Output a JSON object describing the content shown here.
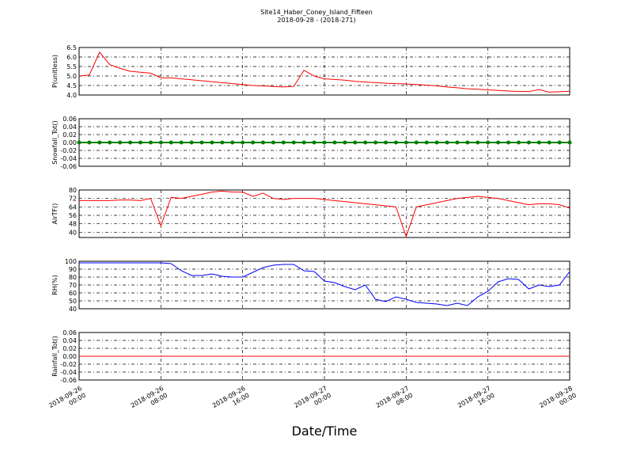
{
  "chart_data": [
    {
      "type": "line",
      "title": "Site14_Haber_Coney_Island_Fifteen",
      "subtitle": "2018-09-28 - (2018-271)",
      "ylabel": "P(unitless)",
      "color": "#ff0000",
      "grid": true,
      "xlim": [
        "2018-09-26 00:00",
        "2018-09-28 00:00"
      ],
      "xticks": [
        "2018-09-26 00:00",
        "2018-09-26 08:00",
        "2018-09-26 16:00",
        "2018-09-27 00:00",
        "2018-09-27 08:00",
        "2018-09-27 16:00",
        "2018-09-28 00:00"
      ],
      "ylim": [
        4.0,
        6.5
      ],
      "yticks": [
        {
          "value": 4.0,
          "label": "4.0"
        },
        4.5,
        {
          "value": 5.0,
          "label": "5.0"
        },
        5.5,
        {
          "value": 6.0,
          "label": "6.0"
        },
        6.5
      ],
      "x": [
        "2018-09-26 00:00",
        "2018-09-26 01:00",
        "2018-09-26 02:00",
        "2018-09-26 03:00",
        "2018-09-26 04:00",
        "2018-09-26 05:00",
        "2018-09-26 06:00",
        "2018-09-26 07:00",
        "2018-09-26 08:00",
        "2018-09-26 09:00",
        "2018-09-26 10:00",
        "2018-09-26 11:00",
        "2018-09-26 12:00",
        "2018-09-26 13:00",
        "2018-09-26 14:00",
        "2018-09-26 15:00",
        "2018-09-26 16:00",
        "2018-09-26 17:00",
        "2018-09-26 18:00",
        "2018-09-26 19:00",
        "2018-09-26 20:00",
        "2018-09-26 21:00",
        "2018-09-26 22:00",
        "2018-09-26 23:00",
        "2018-09-27 00:00",
        "2018-09-27 01:00",
        "2018-09-27 02:00",
        "2018-09-27 03:00",
        "2018-09-27 04:00",
        "2018-09-27 05:00",
        "2018-09-27 06:00",
        "2018-09-27 07:00",
        "2018-09-27 08:00",
        "2018-09-27 09:00",
        "2018-09-27 10:00",
        "2018-09-27 11:00",
        "2018-09-27 12:00",
        "2018-09-27 13:00",
        "2018-09-27 14:00",
        "2018-09-27 15:00",
        "2018-09-27 16:00",
        "2018-09-27 17:00",
        "2018-09-27 18:00",
        "2018-09-27 19:00",
        "2018-09-27 20:00",
        "2018-09-27 21:00",
        "2018-09-27 22:00",
        "2018-09-27 23:00",
        "2018-09-28 00:00"
      ],
      "values": [
        5.0,
        5.05,
        6.25,
        5.6,
        5.4,
        5.25,
        5.2,
        5.15,
        4.9,
        4.9,
        4.85,
        4.8,
        4.75,
        4.7,
        4.65,
        4.6,
        4.55,
        4.5,
        4.48,
        4.45,
        4.42,
        4.45,
        5.3,
        5.0,
        4.85,
        4.82,
        4.78,
        4.72,
        4.68,
        4.65,
        4.62,
        4.6,
        4.58,
        4.55,
        4.52,
        4.48,
        4.42,
        4.38,
        4.33,
        4.3,
        4.27,
        4.24,
        4.21,
        4.19,
        4.18,
        4.28,
        4.15,
        4.17,
        4.2
      ]
    },
    {
      "type": "line",
      "ylabel": "Snowfall_Tot()",
      "color": "#008000",
      "markers": true,
      "grid": true,
      "xlim": [
        "2018-09-26 00:00",
        "2018-09-28 00:00"
      ],
      "xticks": [
        "2018-09-26 00:00",
        "2018-09-26 08:00",
        "2018-09-26 16:00",
        "2018-09-27 00:00",
        "2018-09-27 08:00",
        "2018-09-27 16:00",
        "2018-09-28 00:00"
      ],
      "ylim": [
        -0.06,
        0.06
      ],
      "yticks": [
        -0.06,
        -0.04,
        -0.02,
        {
          "value": 0,
          "label": "0.00"
        },
        0.02,
        0.04,
        0.06
      ],
      "x": [
        "2018-09-26 00:00",
        "2018-09-26 01:00",
        "2018-09-26 02:00",
        "2018-09-26 03:00",
        "2018-09-26 04:00",
        "2018-09-26 05:00",
        "2018-09-26 06:00",
        "2018-09-26 07:00",
        "2018-09-26 08:00",
        "2018-09-26 09:00",
        "2018-09-26 10:00",
        "2018-09-26 11:00",
        "2018-09-26 12:00",
        "2018-09-26 13:00",
        "2018-09-26 14:00",
        "2018-09-26 15:00",
        "2018-09-26 16:00",
        "2018-09-26 17:00",
        "2018-09-26 18:00",
        "2018-09-26 19:00",
        "2018-09-26 20:00",
        "2018-09-26 21:00",
        "2018-09-26 22:00",
        "2018-09-26 23:00",
        "2018-09-27 00:00",
        "2018-09-27 01:00",
        "2018-09-27 02:00",
        "2018-09-27 03:00",
        "2018-09-27 04:00",
        "2018-09-27 05:00",
        "2018-09-27 06:00",
        "2018-09-27 07:00",
        "2018-09-27 08:00",
        "2018-09-27 09:00",
        "2018-09-27 10:00",
        "2018-09-27 11:00",
        "2018-09-27 12:00",
        "2018-09-27 13:00",
        "2018-09-27 14:00",
        "2018-09-27 15:00",
        "2018-09-27 16:00",
        "2018-09-27 17:00",
        "2018-09-27 18:00",
        "2018-09-27 19:00",
        "2018-09-27 20:00",
        "2018-09-27 21:00",
        "2018-09-27 22:00",
        "2018-09-27 23:00",
        "2018-09-28 00:00"
      ],
      "values": [
        0,
        0,
        0,
        0,
        0,
        0,
        0,
        0,
        0,
        0,
        0,
        0,
        0,
        0,
        0,
        0,
        0,
        0,
        0,
        0,
        0,
        0,
        0,
        0,
        0,
        0,
        0,
        0,
        0,
        0,
        0,
        0,
        0,
        0,
        0,
        0,
        0,
        0,
        0,
        0,
        0,
        0,
        0,
        0,
        0,
        0,
        0,
        0,
        0
      ]
    },
    {
      "type": "line",
      "ylabel": "AirTF()",
      "color": "#ff0000",
      "grid": true,
      "xlim": [
        "2018-09-26 00:00",
        "2018-09-28 00:00"
      ],
      "xticks": [
        "2018-09-26 00:00",
        "2018-09-26 08:00",
        "2018-09-26 16:00",
        "2018-09-27 00:00",
        "2018-09-27 08:00",
        "2018-09-27 16:00",
        "2018-09-28 00:00"
      ],
      "ylim": [
        35,
        80
      ],
      "yticks": [
        40,
        48,
        56,
        64,
        72,
        80
      ],
      "x": [
        "2018-09-26 00:00",
        "2018-09-26 01:00",
        "2018-09-26 02:00",
        "2018-09-26 03:00",
        "2018-09-26 04:00",
        "2018-09-26 05:00",
        "2018-09-26 06:00",
        "2018-09-26 07:00",
        "2018-09-26 08:00",
        "2018-09-26 09:00",
        "2018-09-26 10:00",
        "2018-09-26 11:00",
        "2018-09-26 12:00",
        "2018-09-26 13:00",
        "2018-09-26 14:00",
        "2018-09-26 15:00",
        "2018-09-26 16:00",
        "2018-09-26 17:00",
        "2018-09-26 18:00",
        "2018-09-26 19:00",
        "2018-09-26 20:00",
        "2018-09-26 21:00",
        "2018-09-26 22:00",
        "2018-09-26 23:00",
        "2018-09-27 00:00",
        "2018-09-27 01:00",
        "2018-09-27 02:00",
        "2018-09-27 03:00",
        "2018-09-27 04:00",
        "2018-09-27 05:00",
        "2018-09-27 06:00",
        "2018-09-27 07:00",
        "2018-09-27 08:00",
        "2018-09-27 09:00",
        "2018-09-27 10:00",
        "2018-09-27 11:00",
        "2018-09-27 12:00",
        "2018-09-27 13:00",
        "2018-09-27 14:00",
        "2018-09-27 15:00",
        "2018-09-27 16:00",
        "2018-09-27 17:00",
        "2018-09-27 18:00",
        "2018-09-27 19:00",
        "2018-09-27 20:00",
        "2018-09-27 21:00",
        "2018-09-27 22:00",
        "2018-09-27 23:00",
        "2018-09-28 00:00"
      ],
      "values": [
        70,
        70,
        70,
        70,
        70.5,
        70.5,
        70,
        72,
        46,
        73,
        72,
        74,
        76,
        78,
        79,
        78,
        78,
        74,
        77,
        72,
        71,
        72,
        72,
        72,
        71,
        70,
        69,
        68,
        67,
        66,
        65,
        64,
        36,
        64,
        66,
        68,
        70,
        72,
        73,
        74,
        73,
        72,
        70,
        68,
        66,
        67,
        67,
        66,
        63
      ]
    },
    {
      "type": "line",
      "ylabel": "RH(%)",
      "color": "#0000ff",
      "grid": true,
      "xlim": [
        "2018-09-26 00:00",
        "2018-09-28 00:00"
      ],
      "xticks": [
        "2018-09-26 00:00",
        "2018-09-26 08:00",
        "2018-09-26 16:00",
        "2018-09-27 00:00",
        "2018-09-27 08:00",
        "2018-09-27 16:00",
        "2018-09-28 00:00"
      ],
      "ylim": [
        40,
        100
      ],
      "yticks": [
        40,
        50,
        60,
        70,
        80,
        90,
        100
      ],
      "x": [
        "2018-09-26 00:00",
        "2018-09-26 01:00",
        "2018-09-26 02:00",
        "2018-09-26 03:00",
        "2018-09-26 04:00",
        "2018-09-26 05:00",
        "2018-09-26 06:00",
        "2018-09-26 07:00",
        "2018-09-26 08:00",
        "2018-09-26 09:00",
        "2018-09-26 10:00",
        "2018-09-26 11:00",
        "2018-09-26 12:00",
        "2018-09-26 13:00",
        "2018-09-26 14:00",
        "2018-09-26 15:00",
        "2018-09-26 16:00",
        "2018-09-26 17:00",
        "2018-09-26 18:00",
        "2018-09-26 19:00",
        "2018-09-26 20:00",
        "2018-09-26 21:00",
        "2018-09-26 22:00",
        "2018-09-26 23:00",
        "2018-09-27 00:00",
        "2018-09-27 01:00",
        "2018-09-27 02:00",
        "2018-09-27 03:00",
        "2018-09-27 04:00",
        "2018-09-27 05:00",
        "2018-09-27 06:00",
        "2018-09-27 07:00",
        "2018-09-27 08:00",
        "2018-09-27 09:00",
        "2018-09-27 10:00",
        "2018-09-27 11:00",
        "2018-09-27 12:00",
        "2018-09-27 13:00",
        "2018-09-27 14:00",
        "2018-09-27 15:00",
        "2018-09-27 16:00",
        "2018-09-27 17:00",
        "2018-09-27 18:00",
        "2018-09-27 19:00",
        "2018-09-27 20:00",
        "2018-09-27 21:00",
        "2018-09-27 22:00",
        "2018-09-27 23:00",
        "2018-09-28 00:00"
      ],
      "values": [
        98,
        98,
        98,
        98,
        98,
        98,
        98,
        98,
        98,
        97,
        88,
        82,
        82,
        84,
        81,
        80,
        80,
        86,
        92,
        95,
        96,
        96,
        88,
        87,
        75,
        73,
        68,
        64,
        70,
        52,
        49,
        55,
        52,
        48,
        47,
        46,
        44,
        47,
        44,
        55,
        62,
        74,
        78,
        77,
        65,
        70,
        68,
        70,
        87
      ]
    },
    {
      "type": "line",
      "ylabel": "Rainfall_Tot()",
      "xlabel": "Date/Time",
      "color": "#ff0000",
      "grid": true,
      "xlim": [
        "2018-09-26 00:00",
        "2018-09-28 00:00"
      ],
      "xticks": [
        "2018-09-26 00:00",
        "2018-09-26 08:00",
        "2018-09-26 16:00",
        "2018-09-27 00:00",
        "2018-09-27 08:00",
        "2018-09-27 16:00",
        "2018-09-28 00:00"
      ],
      "ylim": [
        -0.06,
        0.06
      ],
      "yticks": [
        -0.06,
        -0.04,
        -0.02,
        {
          "value": 0,
          "label": "0.00"
        },
        0.02,
        0.04,
        0.06
      ],
      "x": [
        "2018-09-26 00:00",
        "2018-09-28 00:00"
      ],
      "values": [
        0,
        0
      ]
    }
  ]
}
